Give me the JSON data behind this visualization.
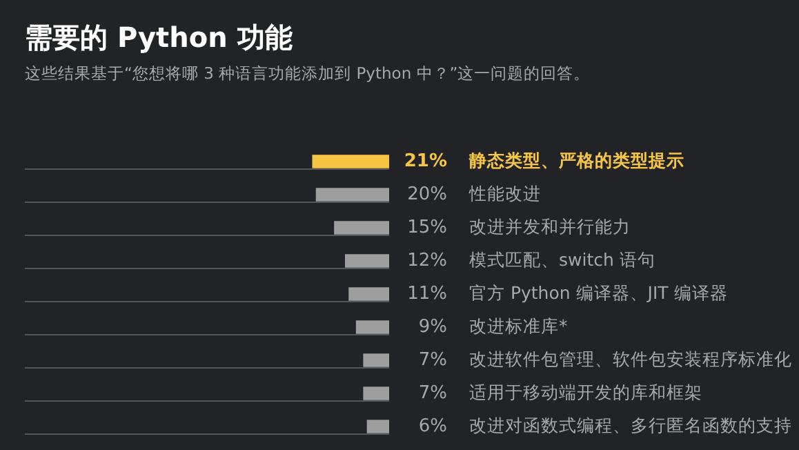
{
  "chart_data": {
    "type": "bar",
    "orientation": "horizontal",
    "title": "需要的 Python 功能",
    "subtitle": "这些结果基于“您想将哪 3 种语言功能添加到 Python 中？”这一问题的回答。",
    "categories": [
      "静态类型、严格的类型提示",
      "性能改进",
      "改进并发和并行能力",
      "模式匹配、switch 语句",
      "官方 Python 编译器、JIT 编译器",
      "改进标准库*",
      "改进软件包管理、软件包安装程序标准化",
      "适用于移动端开发的库和框架",
      "改进对函数式编程、多行匿名函数的支持"
    ],
    "values": [
      21,
      20,
      15,
      12,
      11,
      9,
      7,
      7,
      6
    ],
    "value_labels": [
      "21%",
      "20%",
      "15%",
      "12%",
      "11%",
      "9%",
      "7%",
      "7%",
      "6%"
    ],
    "colors": [
      "#f7c544",
      "#9e9e9e",
      "#9e9e9e",
      "#9e9e9e",
      "#9e9e9e",
      "#9e9e9e",
      "#9e9e9e",
      "#9e9e9e",
      "#9e9e9e"
    ],
    "xlim": [
      100,
      0
    ]
  }
}
